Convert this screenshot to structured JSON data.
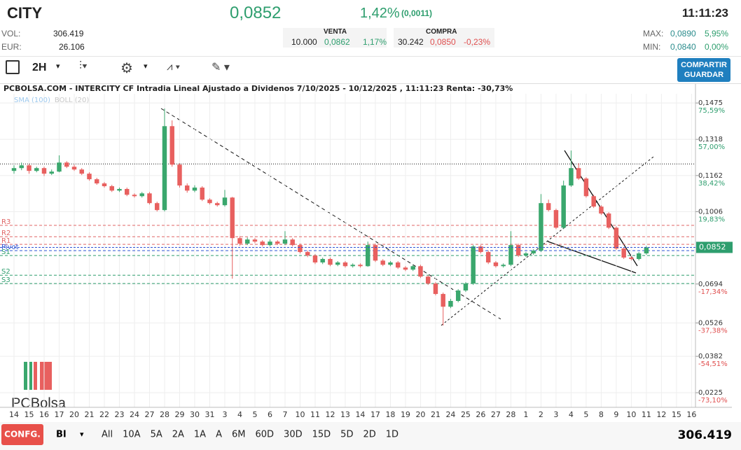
{
  "header": {
    "ticker": "CITY",
    "price": "0,0852",
    "change_pct": "1,42%",
    "change_abs": "(0,0011)",
    "time": "11:11:23",
    "vol_label": "VOL:",
    "vol": "306.419",
    "eur_label": "EUR:",
    "eur": "26.106",
    "venta": {
      "title": "VENTA",
      "qty": "10.000",
      "price": "0,0862",
      "pct": "1,17%"
    },
    "compra": {
      "title": "COMPRA",
      "qty": "30.242",
      "price": "0,0850",
      "pct": "-0,23%"
    },
    "max_label": "MAX:",
    "max": "0,0890",
    "max_pct": "5,95%",
    "min_label": "MIN:",
    "min": "0,0840",
    "min_pct": "0,00%"
  },
  "toolbar": {
    "interval": "2H",
    "share": "COMPARTIR",
    "save": "GUARDAR"
  },
  "footer": {
    "config": "CONFG.",
    "mode": "BI",
    "ranges": [
      "All",
      "10A",
      "5A",
      "2A",
      "1A",
      "A",
      "6M",
      "60D",
      "30D",
      "15D",
      "5D",
      "2D",
      "1D"
    ],
    "volume": "306.419"
  },
  "chart_data": {
    "type": "candlestick",
    "title": "PCBOLSA.COM - INTERCITY CF Intradia Lineal Ajustado a Dividenos 7/10/2025 - 10/12/2025 , 11:11:23 Renta: -30,73%",
    "indicators": [
      {
        "name": "SMA (100)",
        "color": "#9ec9ee"
      },
      {
        "name": "BOLL (20)",
        "color": "#c8c8c8"
      }
    ],
    "watermark": "PCBolsa",
    "up_color": "#3aa76d",
    "down_color": "#e8605f",
    "grid": true,
    "x": [
      0,
      0.5,
      1,
      1.5,
      2,
      2.5,
      3,
      3.5,
      4,
      4.5,
      5,
      5.5,
      6,
      6.5,
      7,
      7.5,
      8,
      8.5,
      9,
      9.5,
      10,
      10.5,
      11,
      11.5,
      12,
      12.5,
      13,
      13.5,
      14,
      14.5,
      15,
      15.5,
      16,
      16.5,
      17,
      17.5,
      18,
      18.5,
      19,
      19.5,
      20,
      20.5,
      21,
      21.5,
      22,
      22.5,
      23,
      23.5,
      24,
      24.5,
      25,
      25.5,
      26,
      26.5,
      27,
      27.5,
      28,
      28.5,
      29,
      29.5,
      30,
      30.5,
      31,
      31.5,
      32,
      32.5,
      33,
      33.5,
      34,
      34.5,
      35,
      35.5,
      36,
      36.5,
      37,
      37.5,
      38,
      38.5,
      39,
      39.5,
      40,
      40.5,
      41,
      41.5,
      42
    ],
    "open": [
      0.1182,
      0.1194,
      0.1206,
      0.1182,
      0.1194,
      0.117,
      0.1179,
      0.1218,
      0.12,
      0.1188,
      0.117,
      0.1146,
      0.1128,
      0.1116,
      0.1097,
      0.1104,
      0.1079,
      0.1073,
      0.1085,
      0.1043,
      0.1013,
      0.1375,
      0.1209,
      0.1119,
      0.1097,
      0.111,
      0.1058,
      0.1043,
      0.1034,
      0.1067,
      0.0892,
      0.0868,
      0.0886,
      0.0877,
      0.0862,
      0.0877,
      0.0868,
      0.0886,
      0.0862,
      0.0832,
      0.0817,
      0.0787,
      0.0802,
      0.0777,
      0.0787,
      0.0771,
      0.0777,
      0.0771,
      0.0862,
      0.0795,
      0.0777,
      0.0787,
      0.0765,
      0.0756,
      0.0771,
      0.0726,
      0.0696,
      0.0651,
      0.0596,
      0.0621,
      0.0666,
      0.0696,
      0.0856,
      0.0832,
      0.0787,
      0.0771,
      0.0777,
      0.0862,
      0.0817,
      0.0826,
      0.0838,
      0.1043,
      0.1013,
      0.0937,
      0.1119,
      0.1194,
      0.1149,
      0.1073,
      0.1028,
      0.0998,
      0.0937,
      0.0847,
      0.0808,
      0.0802,
      0.0826
    ],
    "high": [
      0.1206,
      0.1218,
      0.1212,
      0.12,
      0.12,
      0.1188,
      0.1249,
      0.1224,
      0.1209,
      0.1194,
      0.1176,
      0.1152,
      0.1134,
      0.1122,
      0.111,
      0.111,
      0.1085,
      0.1091,
      0.1091,
      0.1049,
      0.1451,
      0.14,
      0.1215,
      0.1128,
      0.112,
      0.1116,
      0.1064,
      0.1049,
      0.11,
      0.107,
      0.09,
      0.0895,
      0.0892,
      0.0883,
      0.0886,
      0.0883,
      0.0922,
      0.0892,
      0.0868,
      0.0838,
      0.0823,
      0.0808,
      0.0808,
      0.0793,
      0.0793,
      0.0783,
      0.0783,
      0.0877,
      0.0868,
      0.0801,
      0.0793,
      0.0793,
      0.0771,
      0.0777,
      0.0777,
      0.0732,
      0.0702,
      0.0657,
      0.063,
      0.0672,
      0.0702,
      0.0862,
      0.0862,
      0.0838,
      0.0793,
      0.0783,
      0.0922,
      0.0868,
      0.0832,
      0.0844,
      0.1082,
      0.1058,
      0.1019,
      0.114,
      0.127,
      0.1215,
      0.1155,
      0.1079,
      0.1034,
      0.1004,
      0.0943,
      0.0853,
      0.0814,
      0.0832,
      0.0858
    ],
    "low": [
      0.117,
      0.1185,
      0.117,
      0.1176,
      0.116,
      0.1164,
      0.1176,
      0.1194,
      0.1182,
      0.1164,
      0.114,
      0.1122,
      0.111,
      0.1091,
      0.1091,
      0.1073,
      0.1067,
      0.1067,
      0.1037,
      0.1007,
      0.1007,
      0.12,
      0.111,
      0.1088,
      0.109,
      0.1052,
      0.1037,
      0.1028,
      0.1028,
      0.0717,
      0.086,
      0.0862,
      0.087,
      0.0856,
      0.0856,
      0.0862,
      0.0862,
      0.0856,
      0.0826,
      0.081,
      0.078,
      0.078,
      0.0771,
      0.0771,
      0.0765,
      0.0765,
      0.0765,
      0.0768,
      0.0789,
      0.0771,
      0.0771,
      0.0759,
      0.075,
      0.075,
      0.072,
      0.069,
      0.0645,
      0.0515,
      0.059,
      0.0615,
      0.066,
      0.069,
      0.0826,
      0.078,
      0.0765,
      0.0765,
      0.0771,
      0.0811,
      0.0811,
      0.082,
      0.0832,
      0.1007,
      0.0931,
      0.0931,
      0.1113,
      0.1143,
      0.1067,
      0.1022,
      0.0992,
      0.0931,
      0.0841,
      0.0802,
      0.0796,
      0.0796,
      0.082
    ],
    "close": [
      0.1194,
      0.1206,
      0.1182,
      0.1194,
      0.117,
      0.1179,
      0.1218,
      0.12,
      0.1188,
      0.117,
      0.1146,
      0.1128,
      0.1116,
      0.1097,
      0.1104,
      0.1079,
      0.1073,
      0.1085,
      0.1043,
      0.1013,
      0.1375,
      0.1209,
      0.1119,
      0.1097,
      0.111,
      0.1058,
      0.1043,
      0.1034,
      0.1067,
      0.0892,
      0.0868,
      0.0886,
      0.0877,
      0.0862,
      0.0877,
      0.0868,
      0.0886,
      0.0862,
      0.0832,
      0.0817,
      0.0787,
      0.0802,
      0.0777,
      0.0787,
      0.0771,
      0.0777,
      0.0771,
      0.0862,
      0.0795,
      0.0777,
      0.0787,
      0.0765,
      0.0756,
      0.0771,
      0.0726,
      0.0696,
      0.0651,
      0.0596,
      0.0621,
      0.0666,
      0.0696,
      0.0856,
      0.0832,
      0.0787,
      0.0771,
      0.0777,
      0.0862,
      0.0817,
      0.0826,
      0.0838,
      0.1043,
      0.1013,
      0.0937,
      0.1119,
      0.1194,
      0.1149,
      0.1073,
      0.1028,
      0.0998,
      0.0937,
      0.0847,
      0.0808,
      0.0802,
      0.0826,
      0.0852
    ],
    "xlim": [
      -0.93,
      45.26
    ],
    "xticks": [
      {
        "value": 0,
        "label": "14"
      },
      {
        "value": 1,
        "label": "15"
      },
      {
        "value": 2,
        "label": "16"
      },
      {
        "value": 3,
        "label": "17"
      },
      {
        "value": 4,
        "label": "20"
      },
      {
        "value": 5,
        "label": "21"
      },
      {
        "value": 6,
        "label": "22"
      },
      {
        "value": 7,
        "label": "23"
      },
      {
        "value": 8,
        "label": "24"
      },
      {
        "value": 9,
        "label": "27"
      },
      {
        "value": 10,
        "label": "28"
      },
      {
        "value": 11,
        "label": "29"
      },
      {
        "value": 12,
        "label": "30"
      },
      {
        "value": 13,
        "label": "31"
      },
      {
        "value": 14,
        "label": "3"
      },
      {
        "value": 15,
        "label": "4"
      },
      {
        "value": 16,
        "label": "5"
      },
      {
        "value": 17,
        "label": "6"
      },
      {
        "value": 18,
        "label": "7"
      },
      {
        "value": 19,
        "label": "10"
      },
      {
        "value": 20,
        "label": "11"
      },
      {
        "value": 21,
        "label": "12"
      },
      {
        "value": 22,
        "label": "13"
      },
      {
        "value": 23,
        "label": "14"
      },
      {
        "value": 24,
        "label": "17"
      },
      {
        "value": 25,
        "label": "18"
      },
      {
        "value": 26,
        "label": "19"
      },
      {
        "value": 27,
        "label": "20"
      },
      {
        "value": 28,
        "label": "21"
      },
      {
        "value": 29,
        "label": "24"
      },
      {
        "value": 30,
        "label": "25"
      },
      {
        "value": 31,
        "label": "26"
      },
      {
        "value": 32,
        "label": "27"
      },
      {
        "value": 33,
        "label": "28"
      },
      {
        "value": 34,
        "label": "1"
      },
      {
        "value": 35,
        "label": "2"
      },
      {
        "value": 36,
        "label": "3"
      },
      {
        "value": 37,
        "label": "4"
      },
      {
        "value": 38,
        "label": "5"
      },
      {
        "value": 39,
        "label": "8"
      },
      {
        "value": 40,
        "label": "9"
      },
      {
        "value": 41,
        "label": "10"
      },
      {
        "value": 42,
        "label": "11"
      },
      {
        "value": 43,
        "label": "12"
      },
      {
        "value": 44,
        "label": "15"
      },
      {
        "value": 45,
        "label": "16"
      }
    ],
    "ylim": [
      0.0162,
      0.1557
    ],
    "yticks": [
      {
        "value": 0.1475,
        "label": "0,1475"
      },
      {
        "value": 0.1318,
        "label": "0,1318"
      },
      {
        "value": 0.1162,
        "label": "0,1162"
      },
      {
        "value": 0.1006,
        "label": "0,1006"
      },
      {
        "value": 0.0694,
        "label": "0,0694"
      },
      {
        "value": 0.0526,
        "label": "0,0526"
      },
      {
        "value": 0.0382,
        "label": "0,0382"
      },
      {
        "value": 0.0225,
        "label": "0,0225"
      }
    ],
    "ytick_sublabels": [
      "75,59%",
      "57,00%",
      "38,42%",
      "19,83%",
      "-17,34%",
      "-37,38%",
      "-54,51%",
      "-73,10%"
    ],
    "levels": [
      {
        "name": "R3",
        "value": 0.0947,
        "color": "#e06666"
      },
      {
        "name": "R2",
        "value": 0.0898,
        "color": "#e06666"
      },
      {
        "name": "R1",
        "value": 0.0865,
        "color": "#e06666"
      },
      {
        "name": "Pivot",
        "value": 0.0838,
        "color": "#2f55d4"
      },
      {
        "name": "S1",
        "value": 0.0817,
        "color": "#2e9e6e"
      },
      {
        "name": "S2",
        "value": 0.0732,
        "color": "#2e9e6e"
      },
      {
        "name": "S3",
        "value": 0.0696,
        "color": "#2e9e6e"
      }
    ],
    "reference_line": 0.1212,
    "last_price": {
      "value": 0.0852,
      "label": "0,0852"
    }
  }
}
